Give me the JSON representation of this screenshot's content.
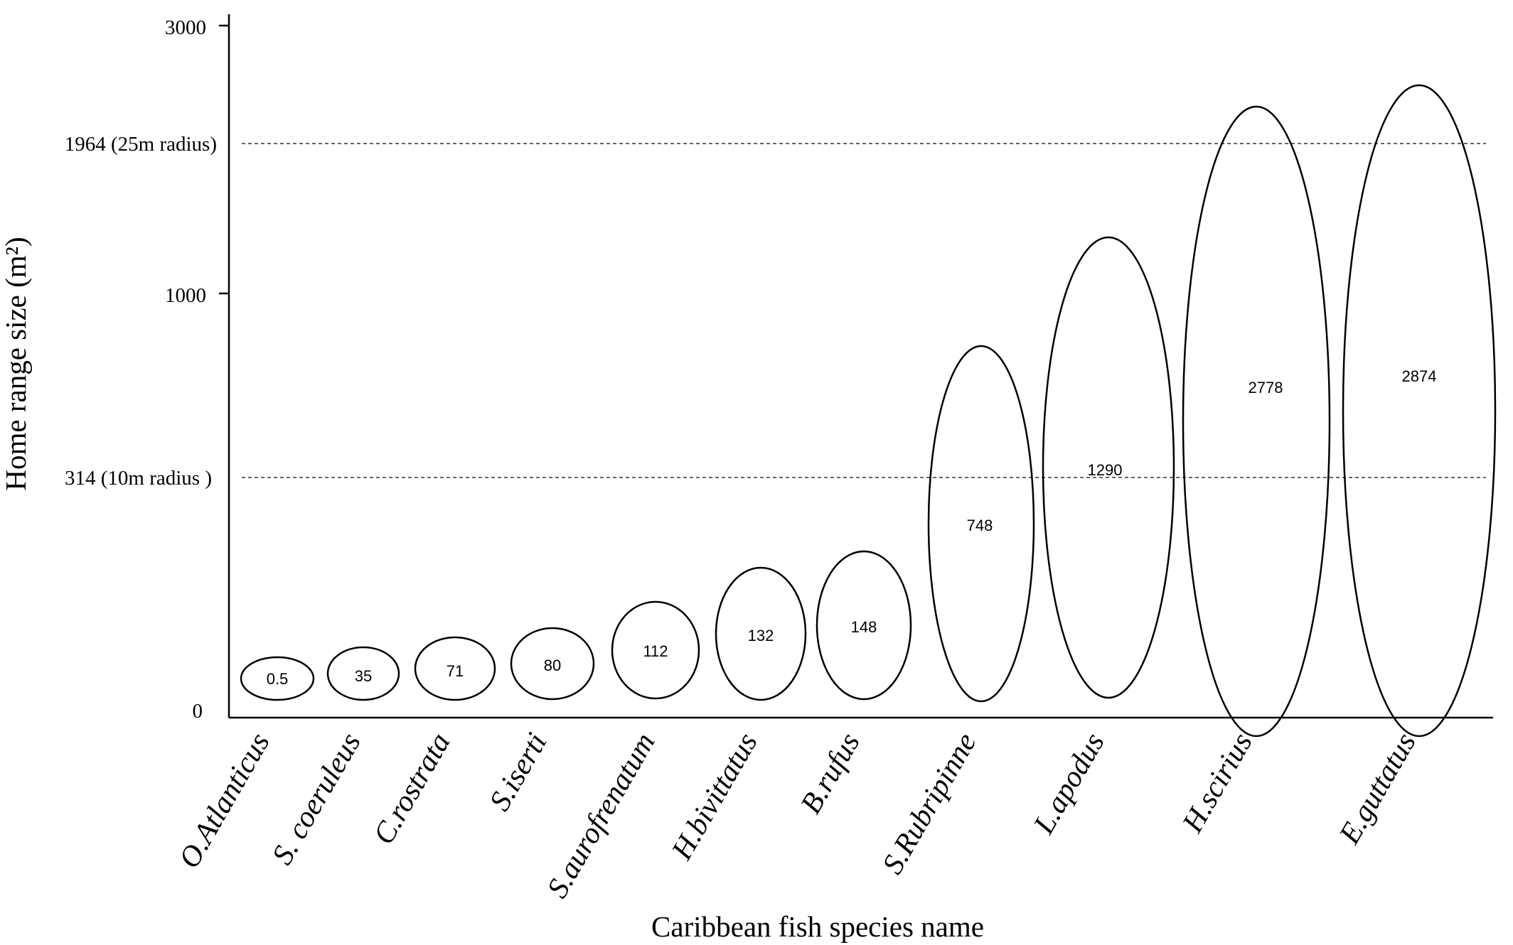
{
  "chart_data": {
    "type": "bubble",
    "xlabel": "Caribbean fish species name",
    "ylabel": "Home range size (m²)",
    "categories": [
      "O.Atlanticus",
      "S. coeruleus",
      "C.rostrata",
      "S.iserti",
      "S.aurofrenatum",
      "H.bivittatus",
      "B.rufus",
      "S.Rubripinne",
      "L.apodus",
      "H.scirius",
      "E.guttatus"
    ],
    "values": [
      0.5,
      35,
      71,
      80,
      112,
      132,
      148,
      748,
      1290,
      2778,
      2874
    ],
    "value_labels": [
      "0.5",
      "35",
      "71",
      "80",
      "112",
      "132",
      "148",
      "748",
      "1290",
      "2778",
      "2874"
    ],
    "y_ticks": [
      "0",
      "1000",
      "3000"
    ],
    "reference_lines": [
      {
        "value": 314,
        "label": "314 (10m radius )"
      },
      {
        "value": 1964,
        "label": "1964 (25m radius)"
      }
    ],
    "grid": false,
    "legend": "none"
  }
}
